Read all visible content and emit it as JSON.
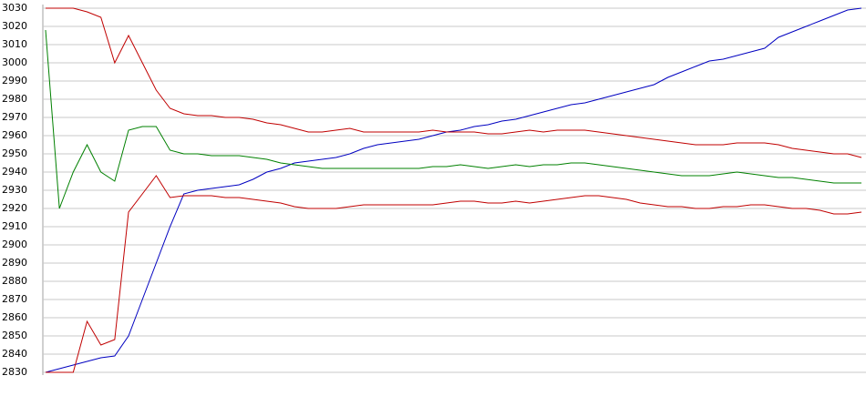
{
  "chart_data": {
    "type": "line",
    "grid": true,
    "categories": [
      null,
      null,
      null,
      null,
      null,
      null,
      null,
      null,
      null,
      null,
      null,
      null,
      null,
      null,
      null,
      null,
      null,
      null,
      null,
      null,
      null,
      null,
      null,
      null,
      null,
      null,
      null,
      null,
      null,
      null,
      null,
      null,
      null,
      null,
      null,
      null,
      null,
      null,
      null,
      null,
      null,
      null,
      null,
      null,
      null,
      null,
      null,
      null,
      null,
      null,
      null,
      null,
      null,
      null,
      null,
      null,
      null,
      null,
      null,
      null
    ],
    "ylim": [
      2830,
      3030
    ],
    "yticks": [
      2830,
      2840,
      2850,
      2860,
      2870,
      2880,
      2890,
      2900,
      2910,
      2920,
      2930,
      2940,
      2950,
      2960,
      2970,
      2980,
      2990,
      3000,
      3010,
      3020,
      3030
    ],
    "series": [
      {
        "color": "#0000c0",
        "values": [
          2830,
          2832,
          2834,
          2836,
          2838,
          2839,
          2850,
          2870,
          2890,
          2910,
          2928,
          2930,
          2931,
          2932,
          2933,
          2936,
          2940,
          2942,
          2945,
          2946,
          2947,
          2948,
          2950,
          2953,
          2955,
          2956,
          2957,
          2958,
          2960,
          2962,
          2963,
          2965,
          2966,
          2968,
          2969,
          2971,
          2973,
          2975,
          2977,
          2978,
          2980,
          2982,
          2984,
          2986,
          2988,
          2992,
          2995,
          2998,
          3001,
          3002,
          3004,
          3006,
          3008,
          3014,
          3017,
          3020,
          3023,
          3026,
          3029,
          3030
        ]
      },
      {
        "color": "#008000",
        "values": [
          3018,
          2920,
          2940,
          2955,
          2940,
          2935,
          2963,
          2965,
          2965,
          2952,
          2950,
          2950,
          2949,
          2949,
          2949,
          2948,
          2947,
          2945,
          2944,
          2943,
          2942,
          2942,
          2942,
          2942,
          2942,
          2942,
          2942,
          2942,
          2943,
          2943,
          2944,
          2943,
          2942,
          2943,
          2944,
          2943,
          2944,
          2944,
          2945,
          2945,
          2944,
          2943,
          2942,
          2941,
          2940,
          2939,
          2938,
          2938,
          2938,
          2939,
          2940,
          2939,
          2938,
          2937,
          2937,
          2936,
          2935,
          2934,
          2934,
          2934
        ]
      },
      {
        "color": "#c00000",
        "values": [
          3030,
          3030,
          3030,
          3028,
          3025,
          3000,
          3015,
          3000,
          2985,
          2975,
          2972,
          2971,
          2971,
          2970,
          2970,
          2969,
          2967,
          2966,
          2964,
          2962,
          2962,
          2963,
          2964,
          2962,
          2962,
          2962,
          2962,
          2962,
          2963,
          2962,
          2962,
          2962,
          2961,
          2961,
          2962,
          2963,
          2962,
          2963,
          2963,
          2963,
          2962,
          2961,
          2960,
          2959,
          2958,
          2957,
          2956,
          2955,
          2955,
          2955,
          2956,
          2956,
          2956,
          2955,
          2953,
          2952,
          2951,
          2950,
          2950,
          2948
        ]
      },
      {
        "color": "#c00000",
        "values": [
          2830,
          2830,
          2830,
          2858,
          2845,
          2848,
          2918,
          2928,
          2938,
          2926,
          2927,
          2927,
          2927,
          2926,
          2926,
          2925,
          2924,
          2923,
          2921,
          2920,
          2920,
          2920,
          2921,
          2922,
          2922,
          2922,
          2922,
          2922,
          2922,
          2923,
          2924,
          2924,
          2923,
          2923,
          2924,
          2923,
          2924,
          2925,
          2926,
          2927,
          2927,
          2926,
          2925,
          2923,
          2922,
          2921,
          2921,
          2920,
          2920,
          2921,
          2921,
          2922,
          2922,
          2921,
          2920,
          2920,
          2919,
          2917,
          2917,
          2918
        ]
      }
    ]
  }
}
